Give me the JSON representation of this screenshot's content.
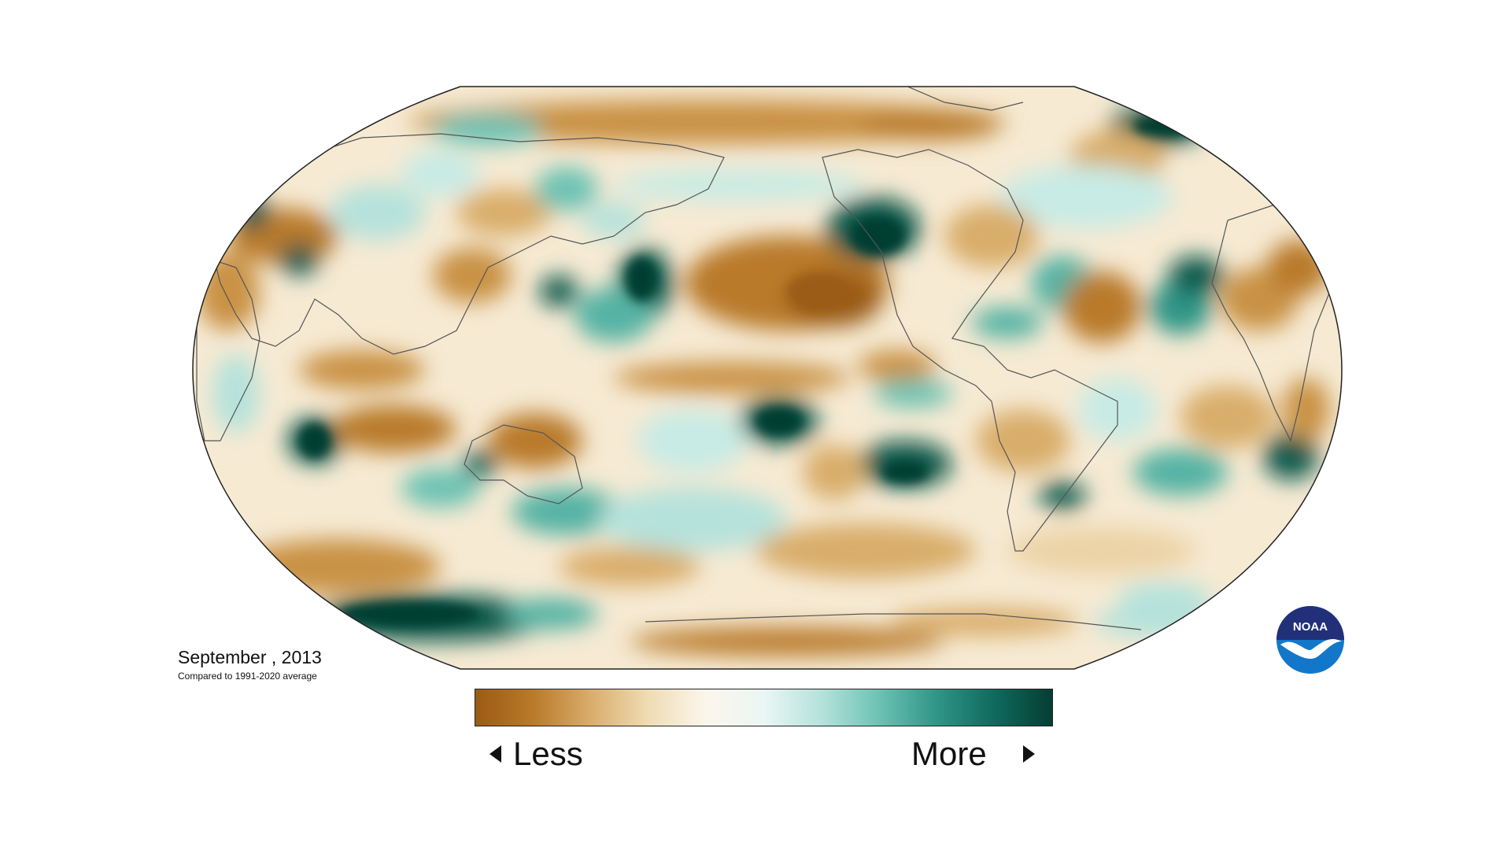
{
  "map": {
    "period_label": "September , 2013",
    "comparison_note": "Compared to 1991-2020 average",
    "legend": {
      "less_label": "Less",
      "more_label": "More",
      "colors": [
        "#9a5b14",
        "#b97a2a",
        "#d9ad6b",
        "#f0dcb4",
        "#fbf6ec",
        "#eaf6f4",
        "#b5e2db",
        "#6cc2b4",
        "#2f9586",
        "#0e6a5d",
        "#063d33"
      ]
    },
    "logo": {
      "text": "NOAA",
      "colors": {
        "top": "#22307a",
        "bottom": "#1277c8",
        "bird": "#ffffff"
      }
    },
    "palette": {
      "dry_strong": "#9a5b14",
      "dry": "#c99244",
      "dry_light": "#ecd3a6",
      "neutral": "#fdf9f1",
      "wet_light": "#c8ebe5",
      "wet": "#55b3a4",
      "wet_strong": "#0b5a4e"
    }
  }
}
